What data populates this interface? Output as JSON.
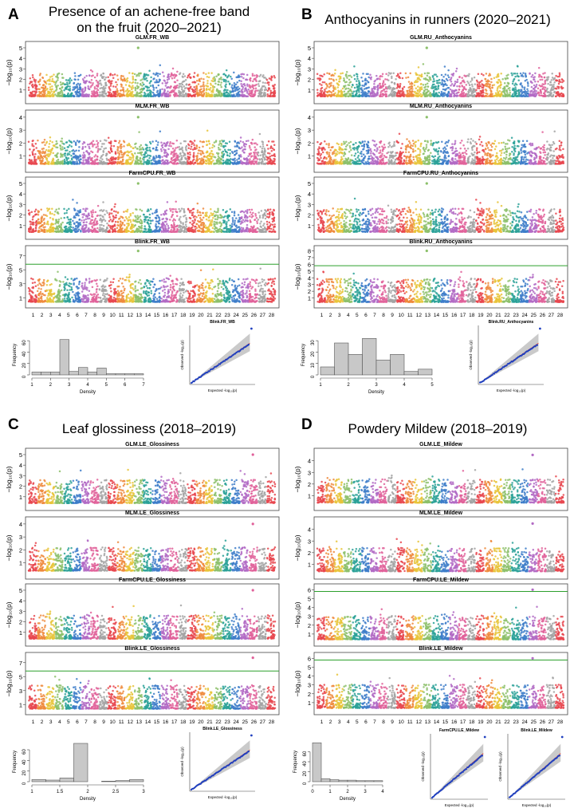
{
  "colors": {
    "chrom_palette": [
      "#e8474f",
      "#ef8a3c",
      "#e7c43a",
      "#8cc06a",
      "#2aa198",
      "#3d7cc9",
      "#b26ac4",
      "#e0619a",
      "#a3a3a3"
    ],
    "threshold": "#2ca02c",
    "qq_points": "#1f3fbf",
    "qq_expected": "#e04a3a",
    "hist_fill": "#c8c8c8"
  },
  "panels": [
    {
      "letter": "A",
      "title_lines": [
        "Presence of an achene-free band",
        "on the fruit (2020–2021)"
      ],
      "plots": [
        {
          "title": "GLM.FR_WB",
          "yticks": [
            1,
            2,
            3,
            4,
            5
          ],
          "ymax": 5.3,
          "threshold": null
        },
        {
          "title": "MLM.FR_WB",
          "yticks": [
            1,
            2,
            3,
            4
          ],
          "ymax": 4.3,
          "threshold": null
        },
        {
          "title": "FarmCPU.FR_WB",
          "yticks": [
            1,
            2,
            3,
            4,
            5
          ],
          "ymax": 5.3,
          "threshold": null
        },
        {
          "title": "Blink.FR_WB",
          "yticks": [
            1,
            3,
            5,
            7
          ],
          "ymax": 8.0,
          "threshold": 5.8
        }
      ],
      "hist": {
        "xlabel": "Density",
        "ylabel": "Frequency",
        "xticks": [
          1,
          2,
          3,
          4,
          5,
          6,
          7
        ],
        "yticks": [
          0,
          20,
          40,
          60
        ],
        "xlim": [
          1,
          7
        ],
        "ylim": [
          0,
          70
        ],
        "bins": [
          [
            1.0,
            1.5,
            5
          ],
          [
            1.5,
            2.0,
            5
          ],
          [
            2.0,
            2.5,
            5
          ],
          [
            2.5,
            3.0,
            62
          ],
          [
            3.0,
            3.5,
            6
          ],
          [
            3.5,
            4.0,
            13
          ],
          [
            4.0,
            4.5,
            5
          ],
          [
            4.5,
            5.0,
            12
          ],
          [
            5.0,
            5.5,
            2
          ],
          [
            5.5,
            6.0,
            2
          ],
          [
            6.0,
            6.5,
            2
          ],
          [
            6.5,
            7.0,
            2
          ]
        ]
      },
      "qq": [
        {
          "title": "Blink.FR_WB",
          "xlabel": "Expected -log₁₀(p)",
          "ylabel": "Observed -log₁₀(p)"
        }
      ]
    },
    {
      "letter": "B",
      "title_lines": [
        "Anthocyanins in runners (2020–2021)"
      ],
      "plots": [
        {
          "title": "GLM.RU_Anthocyanins",
          "yticks": [
            1,
            2,
            3,
            4,
            5
          ],
          "ymax": 5.3,
          "threshold": null
        },
        {
          "title": "MLM.RU_Anthocyanins",
          "yticks": [
            1,
            2,
            3,
            4
          ],
          "ymax": 4.3,
          "threshold": null
        },
        {
          "title": "FarmCPU.RU_Anthocyanins",
          "yticks": [
            1,
            2,
            3,
            4,
            5
          ],
          "ymax": 5.3,
          "threshold": null
        },
        {
          "title": "Blink.RU_Anthocyanins",
          "yticks": [
            1,
            2,
            3,
            4,
            5,
            6,
            7,
            8
          ],
          "ymax": 8.3,
          "threshold": 5.8
        }
      ],
      "hist": {
        "xlabel": "Density",
        "ylabel": "Frequency",
        "xticks": [
          1,
          2,
          3,
          4,
          5
        ],
        "yticks": [
          0,
          10,
          20,
          30
        ],
        "xlim": [
          1,
          5
        ],
        "ylim": [
          0,
          35
        ],
        "bins": [
          [
            1.0,
            1.5,
            7
          ],
          [
            1.5,
            2.0,
            28
          ],
          [
            2.0,
            2.5,
            18
          ],
          [
            2.5,
            3.0,
            32
          ],
          [
            3.0,
            3.5,
            13
          ],
          [
            3.5,
            4.0,
            18
          ],
          [
            4.0,
            4.5,
            3
          ],
          [
            4.5,
            5.0,
            5
          ]
        ]
      },
      "qq": [
        {
          "title": "Blink.RU_Anthocyanins",
          "xlabel": "Expected -log₁₀(p)",
          "ylabel": "Observed -log₁₀(p)"
        }
      ]
    },
    {
      "letter": "C",
      "title_lines": [
        "Leaf glossiness (2018–2019)"
      ],
      "plots": [
        {
          "title": "GLM.LE_Glossiness",
          "yticks": [
            1,
            2,
            3,
            4,
            5
          ],
          "ymax": 5.3,
          "threshold": null
        },
        {
          "title": "MLM.LE_Glossiness",
          "yticks": [
            1,
            2,
            3,
            4
          ],
          "ymax": 4.3,
          "threshold": null
        },
        {
          "title": "FarmCPU.LE_Glossiness",
          "yticks": [
            1,
            2,
            3,
            4,
            5
          ],
          "ymax": 5.3,
          "threshold": null
        },
        {
          "title": "Blink.LE_Glossiness",
          "yticks": [
            1,
            3,
            5,
            7
          ],
          "ymax": 8.0,
          "threshold": 5.8
        }
      ],
      "hist": {
        "xlabel": "Density",
        "ylabel": "Frequency",
        "xticks": [
          1.0,
          1.5,
          2.0,
          2.5,
          3.0
        ],
        "yticks": [
          0,
          20,
          40,
          60
        ],
        "xlim": [
          1.0,
          3.0
        ],
        "ylim": [
          0,
          75
        ],
        "bins": [
          [
            1.0,
            1.25,
            4
          ],
          [
            1.25,
            1.5,
            3
          ],
          [
            1.5,
            1.75,
            7
          ],
          [
            1.75,
            2.0,
            72
          ],
          [
            2.0,
            2.25,
            0
          ],
          [
            2.25,
            2.5,
            1
          ],
          [
            2.5,
            2.75,
            2
          ],
          [
            2.75,
            3.0,
            4
          ]
        ]
      },
      "qq": [
        {
          "title": "Blink.LE_Glossiness",
          "xlabel": "Expected -log₁₀(p)",
          "ylabel": "Observed -log₁₀(p)"
        }
      ]
    },
    {
      "letter": "D",
      "title_lines": [
        "Powdery Mildew (2018–2019)"
      ],
      "plots": [
        {
          "title": "GLM.LE_Mildew",
          "yticks": [
            1,
            2,
            3,
            4
          ],
          "ymax": 4.8,
          "threshold": null
        },
        {
          "title": "MLM.LE_Mildew",
          "yticks": [
            1,
            2,
            3,
            4
          ],
          "ymax": 4.8,
          "threshold": null
        },
        {
          "title": "FarmCPU.LE_Mildew",
          "yticks": [
            1,
            2,
            3,
            4,
            5,
            6
          ],
          "ymax": 6.3,
          "threshold": 5.8
        },
        {
          "title": "Blink.LE_Mildew",
          "yticks": [
            1,
            2,
            3,
            4,
            5,
            6
          ],
          "ymax": 6.3,
          "threshold": 5.8
        }
      ],
      "hist": {
        "xlabel": "Density",
        "ylabel": "Frequency",
        "xticks": [
          0,
          1,
          2,
          3,
          4
        ],
        "yticks": [
          0,
          20,
          40,
          60
        ],
        "xlim": [
          0,
          4
        ],
        "ylim": [
          0,
          80
        ],
        "bins": [
          [
            0.0,
            0.5,
            78
          ],
          [
            0.5,
            1.0,
            6
          ],
          [
            1.0,
            1.5,
            4
          ],
          [
            1.5,
            2.0,
            3
          ],
          [
            2.0,
            2.5,
            3
          ],
          [
            2.5,
            3.0,
            2
          ],
          [
            3.0,
            3.5,
            2
          ],
          [
            3.5,
            4.0,
            2
          ]
        ]
      },
      "qq": [
        {
          "title": "FarmCPU.LE_Mildew",
          "xlabel": "Expected -log₁₀(p)",
          "ylabel": "Observed -log₁₀(p)"
        },
        {
          "title": "Blink.LE_Mildew",
          "xlabel": "Expected -log₁₀(p)",
          "ylabel": "Observed -log₁₀(p)"
        }
      ]
    }
  ],
  "chromosomes": [
    "1",
    "2",
    "3",
    "4",
    "5",
    "6",
    "7",
    "8",
    "9",
    "10",
    "11",
    "12",
    "13",
    "14",
    "15",
    "16",
    "17",
    "18",
    "19",
    "20",
    "21",
    "22",
    "23",
    "24",
    "25",
    "26",
    "27",
    "28"
  ],
  "ylabel": "−log₁₀(p)",
  "chart_data": [
    {
      "type": "scatter",
      "title": "GLM.FR_WB",
      "xlabel": "",
      "ylabel": "−log₁₀(p)",
      "ylim": [
        0,
        5.3
      ],
      "x_categories": "chromosomes 1–28"
    },
    {
      "type": "scatter",
      "title": "Blink.FR_WB",
      "ylim": [
        0,
        8
      ],
      "threshold": 5.8
    },
    {
      "type": "bar",
      "title": "",
      "xlabel": "Density",
      "ylabel": "Frequency",
      "panel": "A histogram"
    },
    {
      "type": "scatter",
      "title": "Blink.RU_Anthocyanins",
      "ylim": [
        0,
        8.3
      ],
      "threshold": 5.8
    },
    {
      "type": "scatter",
      "title": "Blink.LE_Glossiness",
      "ylim": [
        0,
        8
      ],
      "threshold": 5.8
    },
    {
      "type": "scatter",
      "title": "Blink.LE_Mildew",
      "ylim": [
        0,
        6.3
      ],
      "threshold": 5.8
    }
  ]
}
